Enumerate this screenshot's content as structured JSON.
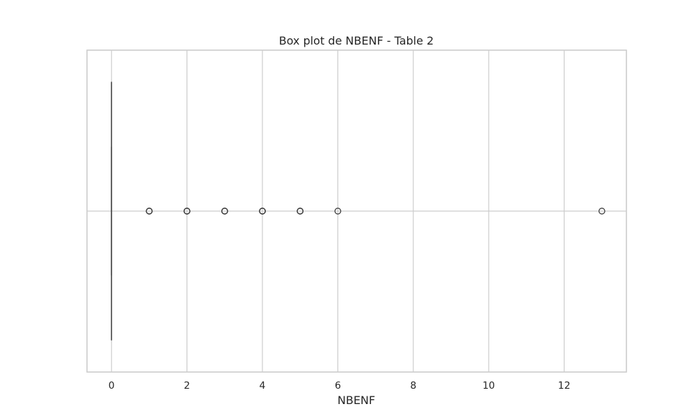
{
  "chart_data": {
    "type": "box",
    "title": "Box plot de NBENF - Table 2",
    "xlabel": "NBENF",
    "ylabel": "",
    "orientation": "horizontal",
    "xlim": [
      -0.65,
      13.65
    ],
    "xticks": [
      0,
      2,
      4,
      6,
      8,
      10,
      12
    ],
    "xtick_labels": [
      "0",
      "2",
      "4",
      "6",
      "8",
      "10",
      "12"
    ],
    "grid": true,
    "box": {
      "min": 0,
      "q1": 0,
      "median": 0,
      "q3": 0,
      "max": 0
    },
    "outliers": [
      1,
      1,
      1,
      2,
      2,
      2,
      3,
      3,
      3,
      4,
      4,
      4,
      5,
      5,
      5,
      6,
      13
    ],
    "colors": {
      "box": "#4c4c4c",
      "outlier_edge": "#3f3f3f",
      "grid": "#cccccc",
      "frame": "#cccccc",
      "text": "#262626"
    }
  }
}
